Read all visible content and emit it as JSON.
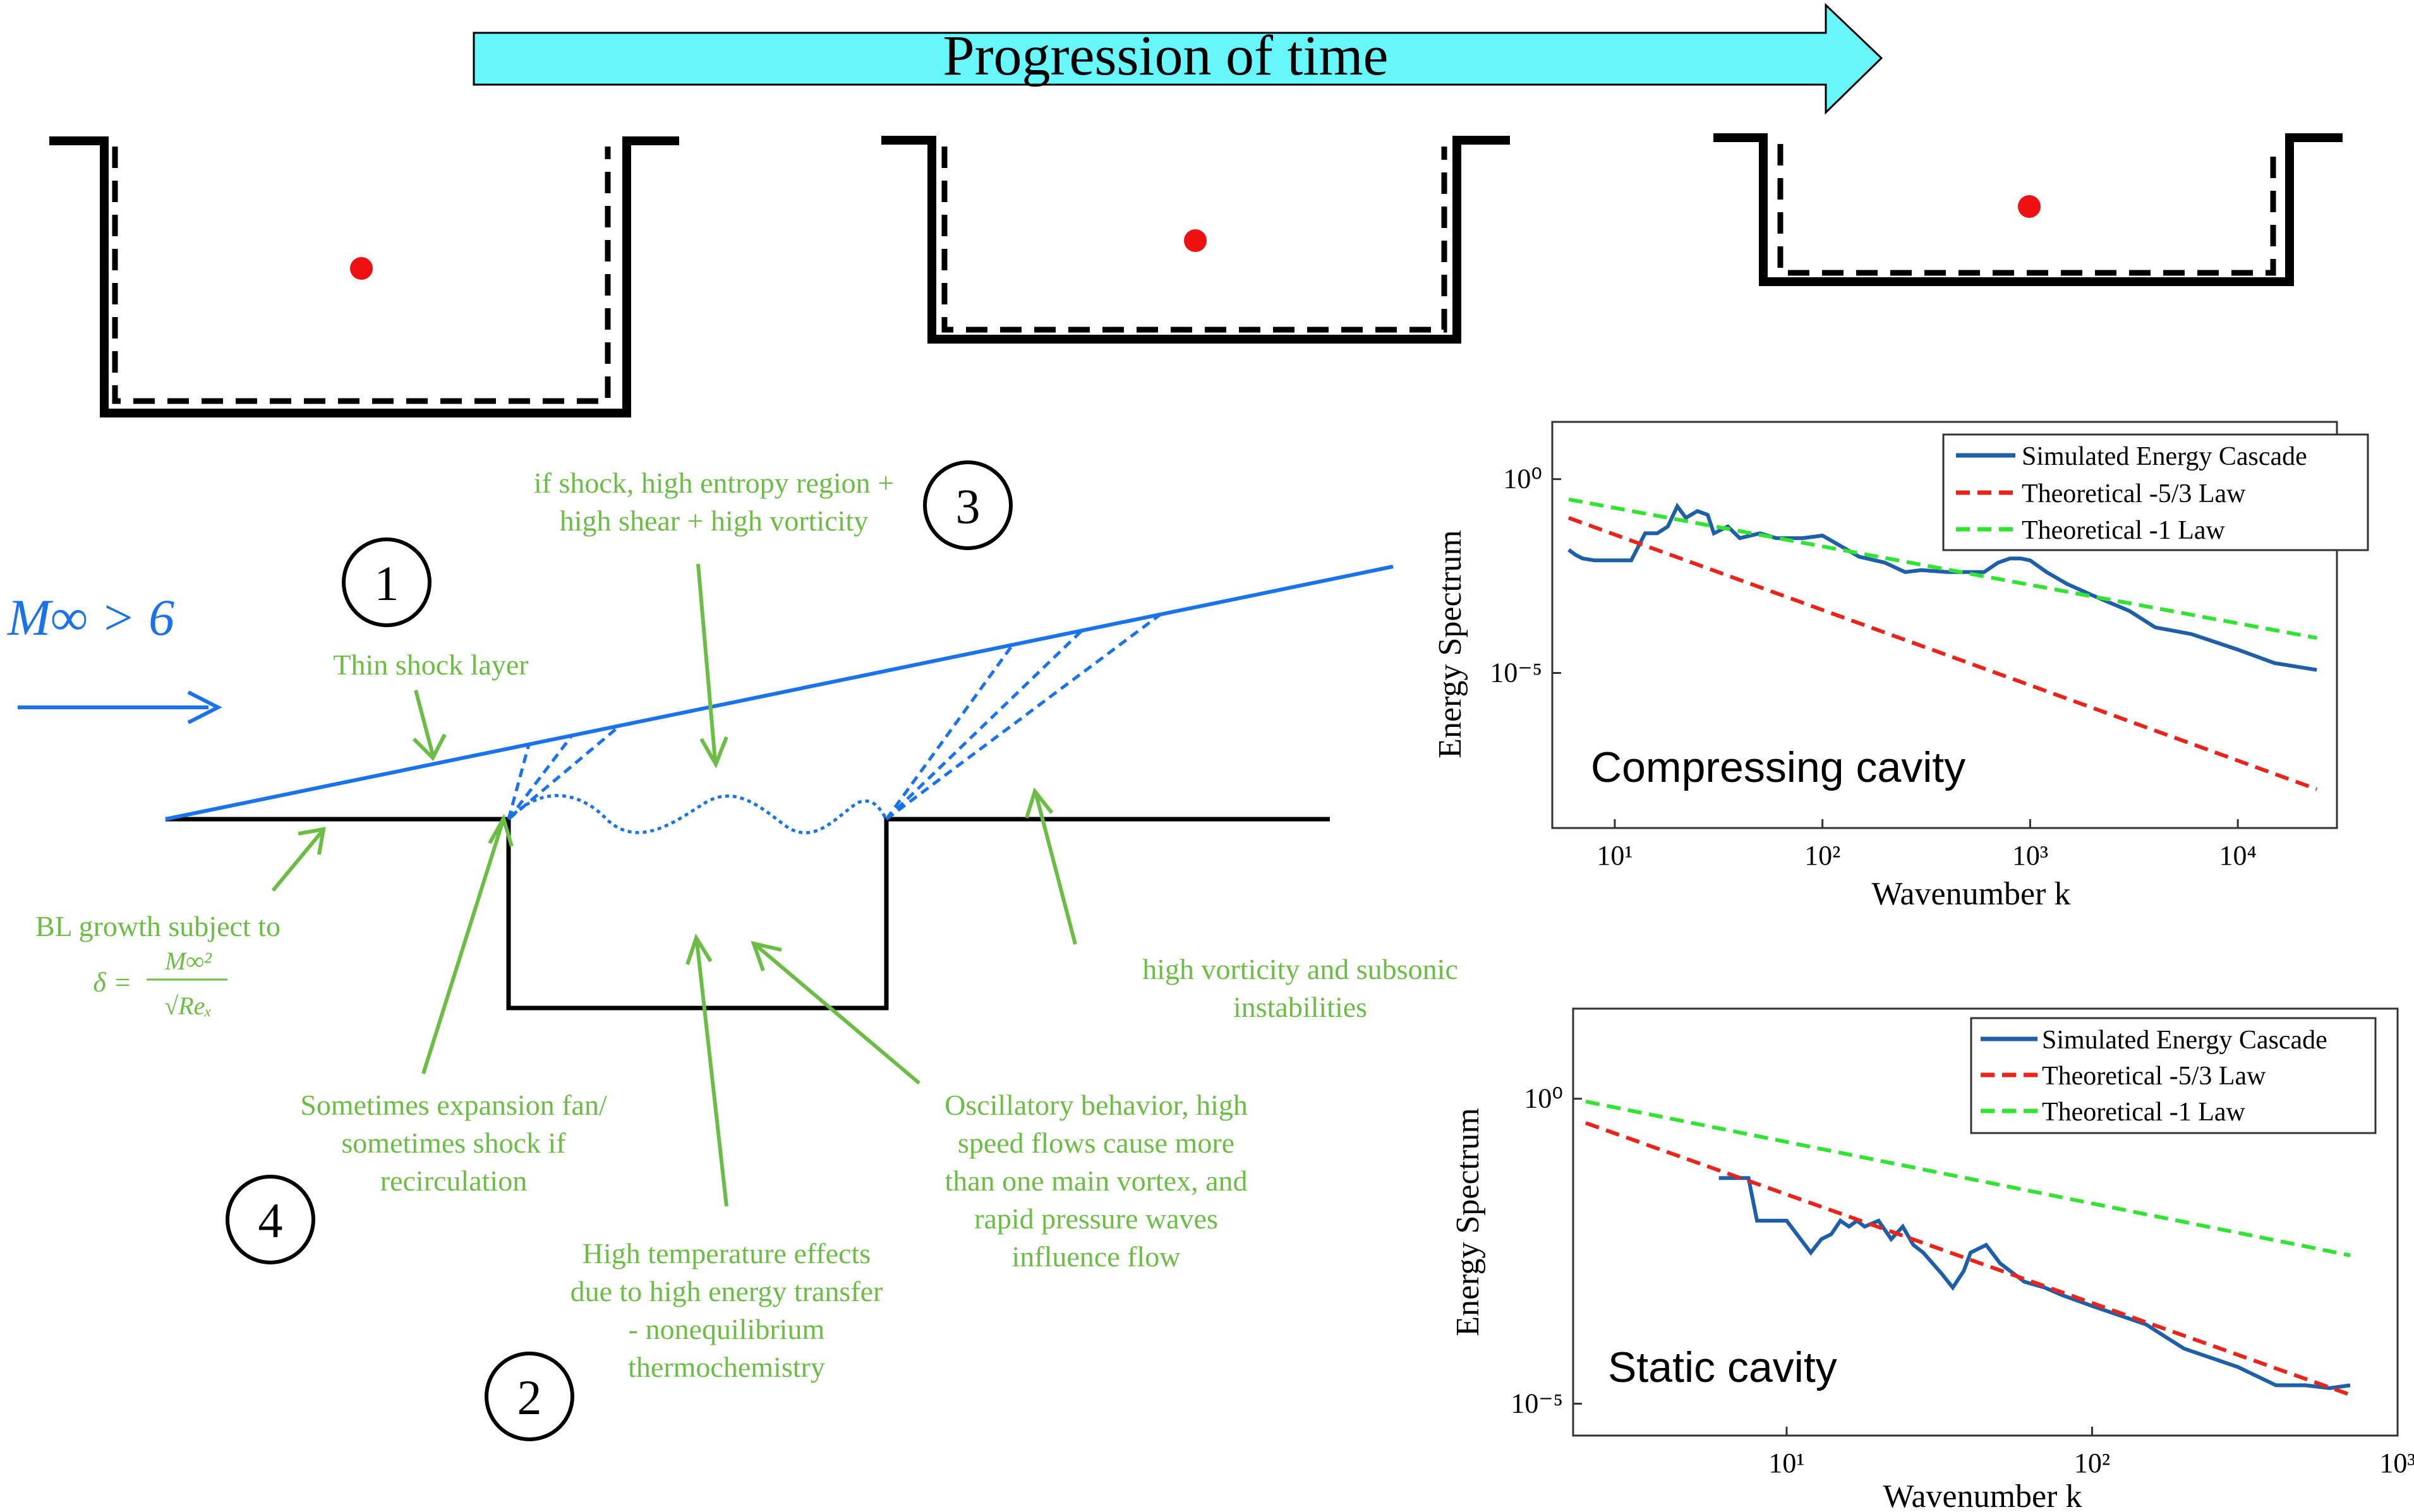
{
  "colors": {
    "arrow_fill": "#67f7fb",
    "annotation_green": "#6cbd45",
    "flow_blue": "#1a73e8",
    "cavity_black": "#000000",
    "red_dot": "#ee1111",
    "spectrum_blue": "#1f5fa8",
    "law_red": "#e8241b",
    "law_green": "#33e333"
  },
  "header": {
    "progression_label": "Progression of time"
  },
  "flow": {
    "mach_label": "M∞ > 6"
  },
  "circled_numbers": [
    "1",
    "2",
    "3",
    "4"
  ],
  "annotations": {
    "thin_shock": "Thin shock layer",
    "shock_region": [
      "if shock, high entropy region +",
      "high shear + high vorticity"
    ],
    "bl_growth": [
      "BL growth subject to"
    ],
    "bl_formula_lhs": "δ =",
    "bl_formula_num": "M∞²",
    "bl_formula_den": "√Reₓ",
    "vorticity": [
      "high vorticity and subsonic",
      "instabilities"
    ],
    "expansion_fan": [
      "Sometimes expansion fan/",
      "sometimes shock if",
      "recirculation"
    ],
    "temperature": [
      "High temperature effects",
      "due to high energy transfer",
      "- nonequilibrium",
      "thermochemistry"
    ],
    "oscillatory": [
      "Oscillatory behavior, high",
      "speed flows cause more",
      "than one main vortex, and",
      "rapid pressure waves",
      "influence flow"
    ]
  },
  "chart_data": [
    {
      "type": "line",
      "title": "Compressing cavity",
      "xlabel": "Wavenumber k",
      "ylabel": "Energy Spectrum",
      "xscale": "log",
      "yscale": "log",
      "xlim": [
        5,
        30000
      ],
      "ylim": [
        1e-09,
        30
      ],
      "xticks": [
        10,
        100,
        1000,
        10000
      ],
      "xtick_labels": [
        "10¹",
        "10²",
        "10³",
        "10⁴"
      ],
      "yticks": [
        1,
        1e-05
      ],
      "ytick_labels": [
        "10⁰",
        "10⁻⁵"
      ],
      "legend": "top-right",
      "series": [
        {
          "name": "Simulated Energy Cascade",
          "x": [
            6,
            6.5,
            7,
            8,
            9,
            10,
            12,
            14,
            16,
            18,
            20,
            22,
            25,
            28,
            30,
            35,
            40,
            50,
            60,
            80,
            100,
            120,
            150,
            200,
            250,
            300,
            400,
            500,
            600,
            700,
            800,
            900,
            1000,
            1200,
            1500,
            2000,
            3000,
            4000,
            6000,
            10000,
            15000,
            24000
          ],
          "y": [
            0.015,
            0.011,
            0.009,
            0.008,
            0.008,
            0.008,
            0.008,
            0.04,
            0.04,
            0.06,
            0.2,
            0.1,
            0.15,
            0.12,
            0.04,
            0.06,
            0.03,
            0.04,
            0.03,
            0.03,
            0.035,
            0.02,
            0.01,
            0.007,
            0.004,
            0.0045,
            0.004,
            0.004,
            0.004,
            0.007,
            0.009,
            0.009,
            0.008,
            0.004,
            0.002,
            0.001,
            0.0004,
            0.00015,
            0.0001,
            4e-05,
            1.8e-05,
            1.2e-05
          ]
        },
        {
          "name": "Theoretical -5/3 Law",
          "dash": true,
          "x": [
            6,
            24000
          ],
          "y": [
            0.1,
            1e-08
          ]
        },
        {
          "name": "Theoretical -1 Law",
          "dash": true,
          "x": [
            6,
            24000
          ],
          "y": [
            0.3,
            8e-05
          ]
        }
      ]
    },
    {
      "type": "line",
      "title": "Static cavity",
      "xlabel": "Wavenumber k",
      "ylabel": "Energy Spectrum",
      "xscale": "log",
      "yscale": "log",
      "xlim": [
        2,
        1000
      ],
      "ylim": [
        3e-06,
        30
      ],
      "xticks": [
        10,
        100,
        1000
      ],
      "xtick_labels": [
        "10¹",
        "10²",
        "10³"
      ],
      "yticks": [
        1,
        1e-05
      ],
      "ytick_labels": [
        "10⁰",
        "10⁻⁵"
      ],
      "legend": "top-right",
      "series": [
        {
          "name": "Simulated Energy Cascade",
          "x": [
            6,
            7.5,
            8,
            10,
            12,
            13,
            14,
            15,
            16,
            17,
            18,
            20,
            22,
            24,
            26,
            28,
            32,
            35,
            38,
            40,
            45,
            50,
            60,
            70,
            80,
            100,
            150,
            200,
            300,
            400,
            500,
            600,
            700
          ],
          "y": [
            0.05,
            0.05,
            0.01,
            0.01,
            0.003,
            0.005,
            0.006,
            0.01,
            0.008,
            0.01,
            0.008,
            0.01,
            0.005,
            0.008,
            0.004,
            0.003,
            0.0014,
            0.0008,
            0.0015,
            0.003,
            0.004,
            0.002,
            0.001,
            0.0008,
            0.0006,
            0.0004,
            0.0002,
            8e-05,
            4e-05,
            2e-05,
            2e-05,
            1.8e-05,
            2e-05
          ]
        },
        {
          "name": "Theoretical -5/3 Law",
          "dash": true,
          "x": [
            2.2,
            700
          ],
          "y": [
            0.4,
            1.4e-05
          ]
        },
        {
          "name": "Theoretical -1 Law",
          "dash": true,
          "x": [
            2.2,
            700
          ],
          "y": [
            0.9,
            0.0027
          ]
        }
      ]
    }
  ]
}
